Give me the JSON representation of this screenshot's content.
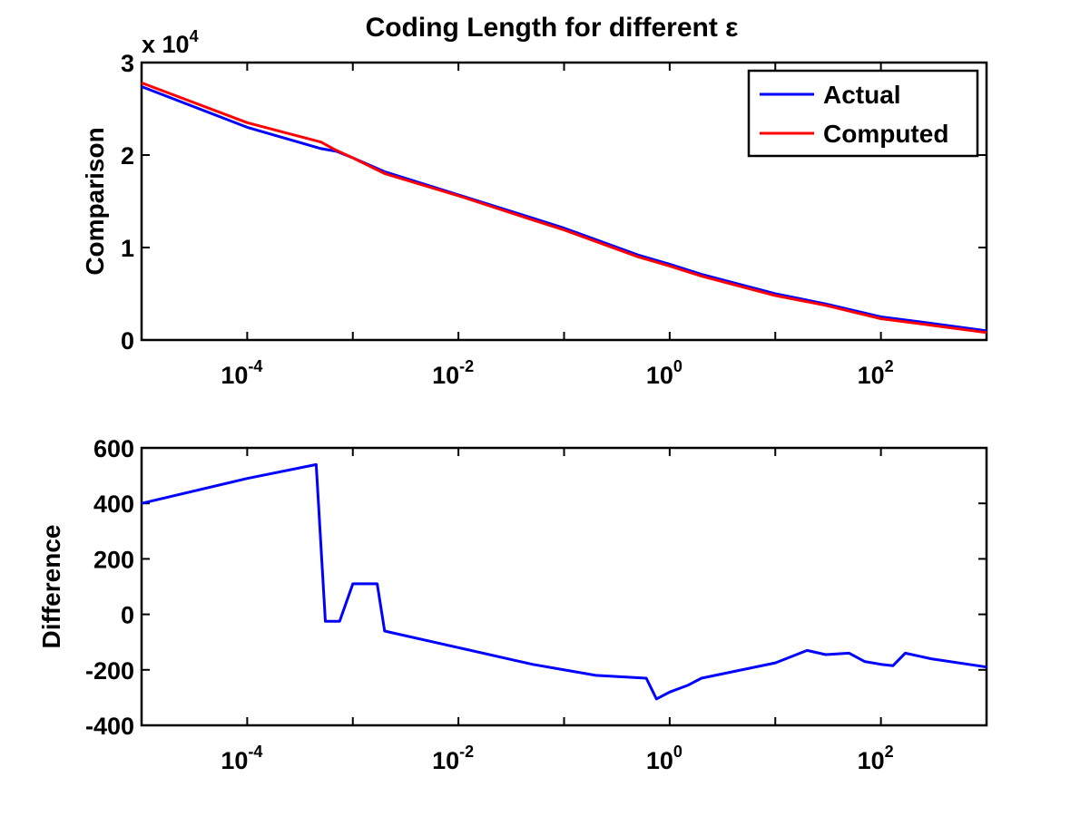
{
  "chart_data": [
    {
      "type": "line",
      "title": "Coding Length for different ε",
      "xlabel": "",
      "ylabel": "Comparison",
      "x_scale": "log",
      "xlim": [
        1e-05,
        1000
      ],
      "ylim": [
        0,
        30000
      ],
      "y_multiplier_label": "x 10",
      "y_multiplier_exponent": "4",
      "xticks": [
        {
          "base": "10",
          "exp": "-4",
          "value": 0.0001
        },
        {
          "base": "10",
          "exp": "-2",
          "value": 0.01
        },
        {
          "base": "10",
          "exp": "0",
          "value": 1
        },
        {
          "base": "10",
          "exp": "2",
          "value": 100
        }
      ],
      "yticks": [
        {
          "label": "0",
          "value": 0
        },
        {
          "label": "1",
          "value": 10000
        },
        {
          "label": "2",
          "value": 20000
        },
        {
          "label": "3",
          "value": 30000
        }
      ],
      "legend_position": "top-right",
      "series": [
        {
          "name": "Actual",
          "color": "#0000ff",
          "x": [
            1e-05,
            0.0001,
            0.0005,
            0.0007,
            0.001,
            0.002,
            0.01,
            0.05,
            0.1,
            0.5,
            1,
            2,
            10,
            30,
            100,
            300,
            1000
          ],
          "y": [
            27400,
            23000,
            20700,
            20400,
            19700,
            18200,
            15700,
            13200,
            12100,
            9200,
            8200,
            7100,
            5000,
            3900,
            2500,
            1800,
            1000
          ]
        },
        {
          "name": "Computed",
          "color": "#ff0000",
          "x": [
            1e-05,
            0.0001,
            0.0005,
            0.0007,
            0.001,
            0.002,
            0.01,
            0.05,
            0.1,
            0.5,
            1,
            2,
            10,
            30,
            100,
            300,
            1000
          ],
          "y": [
            27800,
            23500,
            21400,
            20500,
            19700,
            18000,
            15600,
            13000,
            11900,
            9000,
            8000,
            6900,
            4800,
            3750,
            2300,
            1600,
            800
          ]
        }
      ]
    },
    {
      "type": "line",
      "xlabel": "",
      "ylabel": "Difference",
      "x_scale": "log",
      "xlim": [
        1e-05,
        1000
      ],
      "ylim": [
        -400,
        600
      ],
      "xticks": [
        {
          "base": "10",
          "exp": "-4",
          "value": 0.0001
        },
        {
          "base": "10",
          "exp": "-2",
          "value": 0.01
        },
        {
          "base": "10",
          "exp": "0",
          "value": 1
        },
        {
          "base": "10",
          "exp": "2",
          "value": 100
        }
      ],
      "yticks": [
        {
          "label": "600",
          "value": 600
        },
        {
          "label": "400",
          "value": 400
        },
        {
          "label": "200",
          "value": 200
        },
        {
          "label": "0",
          "value": 0
        },
        {
          "label": "-200",
          "value": -200
        },
        {
          "label": "-400",
          "value": -400
        }
      ],
      "series": [
        {
          "color": "#0000ff",
          "x": [
            1e-05,
            0.0001,
            0.00045,
            0.00055,
            0.00075,
            0.001,
            0.0017,
            0.002,
            0.01,
            0.05,
            0.2,
            0.6,
            0.75,
            1,
            1.5,
            2,
            10,
            20,
            30,
            50,
            70,
            100,
            130,
            170,
            300,
            1000
          ],
          "y": [
            400,
            490,
            540,
            -25,
            -25,
            110,
            110,
            -60,
            -120,
            -180,
            -220,
            -230,
            -305,
            -280,
            -255,
            -230,
            -175,
            -130,
            -145,
            -140,
            -170,
            -180,
            -185,
            -140,
            -160,
            -190
          ]
        }
      ]
    }
  ]
}
